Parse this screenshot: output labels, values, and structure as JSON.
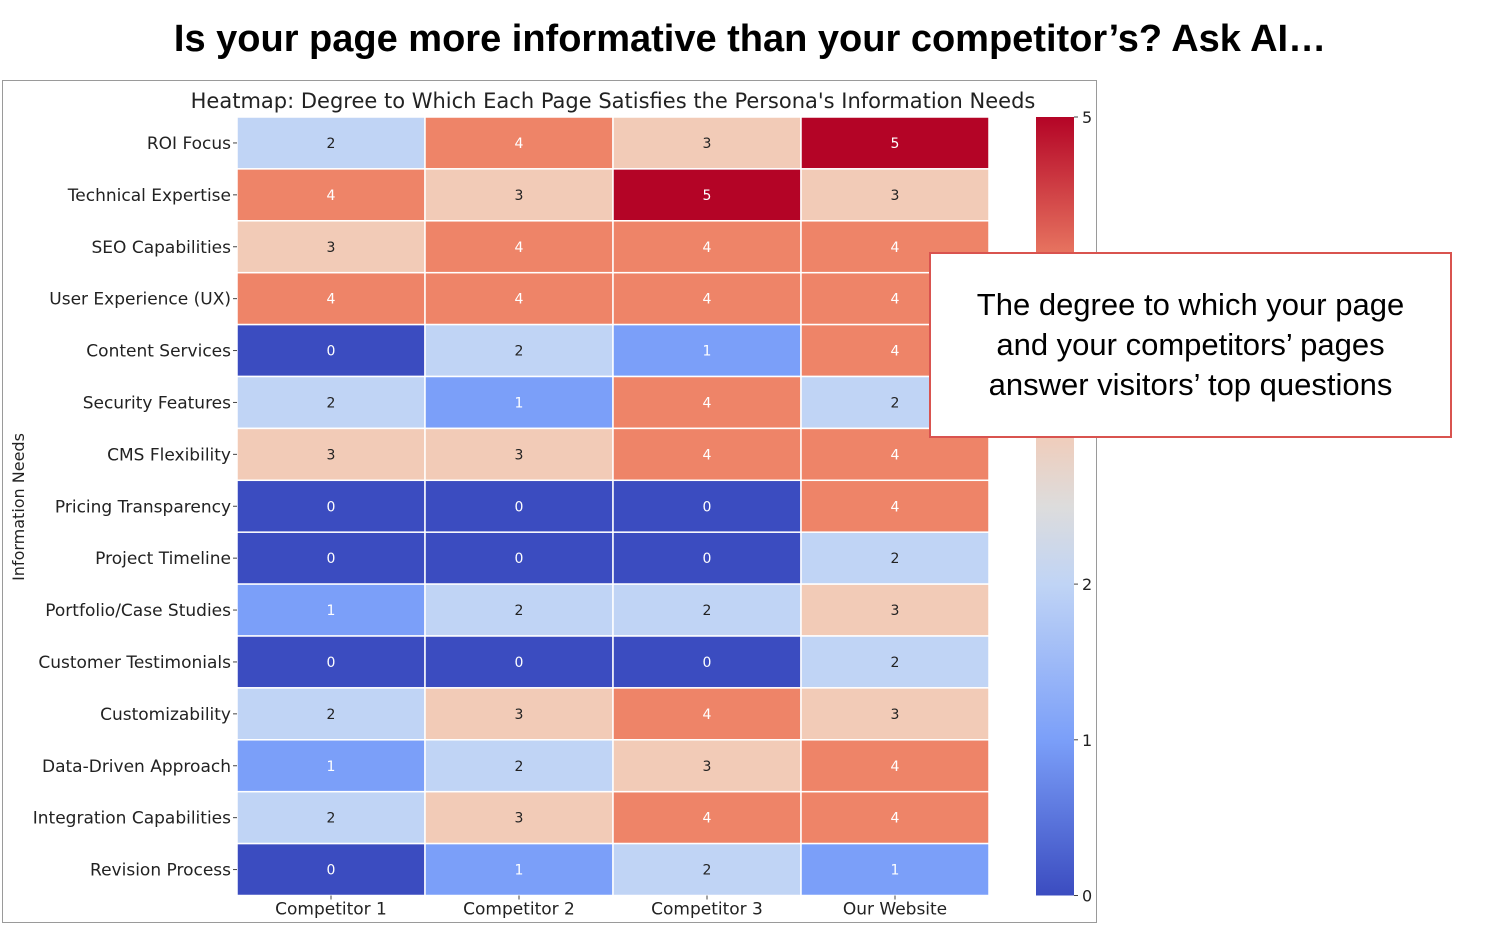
{
  "slide": {
    "title": "Is your page more informative than your competitor’s? Ask AI…",
    "callout": "The degree to which your page\nand your competitors’ pages\nanswer visitors’ top questions"
  },
  "chart_data": {
    "type": "heatmap",
    "title": "Heatmap: Degree to Which Each Page Satisfies the Persona's Information Needs",
    "xlabel": "",
    "ylabel": "Information Needs",
    "columns": [
      "Competitor 1",
      "Competitor 2",
      "Competitor 3",
      "Our Website"
    ],
    "rows": [
      "ROI Focus",
      "Technical Expertise",
      "SEO Capabilities",
      "User Experience (UX)",
      "Content Services",
      "Security Features",
      "CMS Flexibility",
      "Pricing Transparency",
      "Project Timeline",
      "Portfolio/Case Studies",
      "Customer Testimonials",
      "Customizability",
      "Data-Driven Approach",
      "Integration Capabilities",
      "Revision Process"
    ],
    "values": [
      [
        2,
        4,
        3,
        5
      ],
      [
        4,
        3,
        5,
        3
      ],
      [
        3,
        4,
        4,
        4
      ],
      [
        4,
        4,
        4,
        4
      ],
      [
        0,
        2,
        1,
        4
      ],
      [
        2,
        1,
        4,
        2
      ],
      [
        3,
        3,
        4,
        4
      ],
      [
        0,
        0,
        0,
        4
      ],
      [
        0,
        0,
        0,
        2
      ],
      [
        1,
        2,
        2,
        3
      ],
      [
        0,
        0,
        0,
        2
      ],
      [
        2,
        3,
        4,
        3
      ],
      [
        1,
        2,
        3,
        4
      ],
      [
        2,
        3,
        4,
        4
      ],
      [
        0,
        1,
        2,
        1
      ]
    ],
    "colormap": "coolwarm",
    "color_scale": {
      "0": "#3b4cc0",
      "1": "#7b9ff9",
      "2": "#c0d4f5",
      "3": "#f2cbb7",
      "4": "#ee8468",
      "5": "#b40426"
    },
    "colorbar": {
      "range": [
        0,
        5
      ],
      "ticks": [
        0,
        1,
        2,
        5
      ]
    },
    "annotations": true
  }
}
